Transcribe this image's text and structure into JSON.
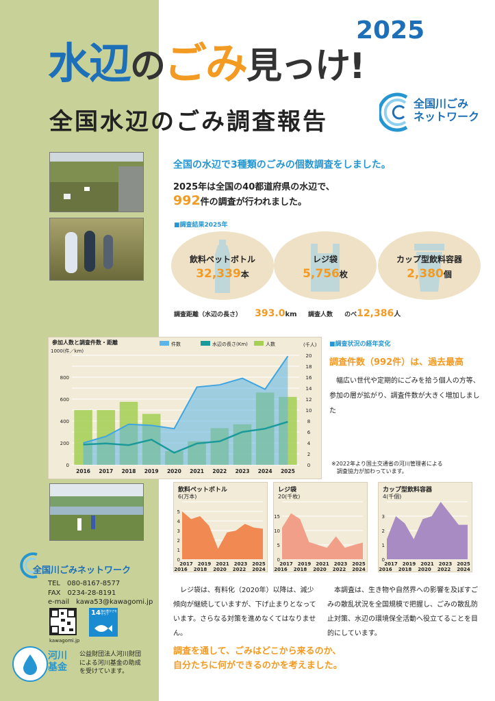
{
  "title": {
    "part1": "水辺",
    "part2": "の",
    "part3": "ごみ",
    "part4": "見っけ!",
    "year": "2025",
    "subtitle": "全国水辺のごみ調査報告"
  },
  "header_logo": {
    "line1": "全国川ごみ",
    "line2": "ネットワーク"
  },
  "lead": {
    "line1": "全国の水辺で3種類のごみの個数調査をしました。",
    "line2": "2025年は全国の40都道府県の水辺で、",
    "count": "992",
    "line3_suffix": "件の調査が行われました。"
  },
  "results": {
    "heading": "■調査結果2025年",
    "items": [
      {
        "name": "飲料ペットボトル",
        "value": "32,339",
        "unit": "本",
        "icon": "bottle-icon"
      },
      {
        "name": "レジ袋",
        "value": "5,756",
        "unit": "枚",
        "icon": "bag-icon"
      },
      {
        "name": "カップ型飲料容器",
        "value": "2,380",
        "unit": "個",
        "icon": "cup-icon"
      }
    ],
    "distance_label": "調査距離（水辺の長さ）",
    "distance_value": "393.0",
    "distance_unit": "km",
    "people_label": "調査人数",
    "people_prefix": "のべ",
    "people_value": "12,386",
    "people_unit": "人"
  },
  "chart_data": [
    {
      "type": "bar",
      "title": "参加人数と調査件数・距離",
      "ylabel_left": "1000(件／km)",
      "ylabel_right": "(千人)",
      "categories": [
        "2016",
        "2017",
        "2018",
        "2019",
        "2020",
        "2021",
        "2022",
        "2023",
        "2024",
        "2025"
      ],
      "ylim_left": [
        0,
        1000
      ],
      "ylim_right": [
        0,
        20
      ],
      "left_ticks": [
        "0",
        "200",
        "400",
        "600",
        "800",
        "1000"
      ],
      "right_ticks": [
        "0",
        "2",
        "4",
        "6",
        "8",
        "10",
        "12",
        "14",
        "16",
        "18",
        "20"
      ],
      "legend": [
        "件数",
        "水辺の長さ(Km)",
        "人数"
      ],
      "series": [
        {
          "name": "人数",
          "kind": "bar",
          "axis": "right",
          "color": "#a5cf55",
          "values": [
            10.0,
            10.0,
            11.5,
            9.3,
            2.5,
            4.3,
            6.7,
            7.4,
            13.2,
            12.4
          ]
        },
        {
          "name": "件数",
          "kind": "area",
          "axis": "left",
          "color": "#5bb5e8",
          "values": [
            200,
            260,
            370,
            360,
            330,
            710,
            730,
            790,
            690,
            992
          ]
        },
        {
          "name": "水辺の長さ(Km)",
          "kind": "line",
          "axis": "left",
          "color": "#1a9a9a",
          "values": [
            185,
            195,
            180,
            230,
            110,
            195,
            215,
            300,
            330,
            393
          ]
        }
      ]
    },
    {
      "type": "area",
      "title": "飲料ペットボトル",
      "ylabel": "6(万本)",
      "ylim": [
        0,
        6
      ],
      "left_ticks": [
        "0",
        "1",
        "2",
        "3",
        "4",
        "5",
        "6"
      ],
      "x": [
        "2017",
        "2019",
        "2021",
        "2023",
        "2025",
        "2016",
        "2018",
        "2020",
        "2022",
        "2024"
      ],
      "points": [
        5.0,
        4.2,
        4.5,
        3.5,
        1.1,
        2.8,
        3.0,
        3.7,
        3.3,
        3.2
      ],
      "color": "#f08a52"
    },
    {
      "type": "area",
      "title": "レジ袋",
      "ylabel": "20(千枚)",
      "ylim": [
        0,
        20
      ],
      "left_ticks": [
        "0",
        "5",
        "10",
        "15",
        "20"
      ],
      "x": [
        "2017",
        "2019",
        "2021",
        "2023",
        "2025",
        "2016",
        "2018",
        "2020",
        "2022",
        "2024"
      ],
      "points": [
        11,
        16,
        14,
        6,
        5,
        4,
        8,
        4,
        5,
        5.8
      ],
      "color": "#f19f88"
    },
    {
      "type": "area",
      "title": "カップ型飲料容器",
      "ylabel": "4(千個)",
      "ylim": [
        0,
        4
      ],
      "left_ticks": [
        "0",
        "1",
        "2",
        "3",
        "4"
      ],
      "x": [
        "2017",
        "2019",
        "2021",
        "2023",
        "2025",
        "2016",
        "2018",
        "2020",
        "2022",
        "2024"
      ],
      "points": [
        1.4,
        3.0,
        2.5,
        1.4,
        2.8,
        3.0,
        4.0,
        3.2,
        2.4,
        2.4
      ],
      "color": "#a98bc4"
    }
  ],
  "trend": {
    "heading": "■調査状況の経年変化",
    "headline": "調査件数（992件）は、過去最高",
    "text": "　幅広い世代や定期的にごみを拾う個人の方等、参加の層が拡がり、調査件数が大きく増加しました",
    "note1": "※2022年より国土交通省の河川管理者による",
    "note2": "　調査協力が加わっています。"
  },
  "paragraph_left": "　レジ袋は、有料化（2020年）以降は、減少傾向が継続していますが、下げ止まりとなっています。さらなる対策を進めなくてはなりません。",
  "paragraph_right": "　本調査は、生き物や自然界への影響を及ぼすごみの散乱状況を全国規模で把握し、ごみの散乱防止対策、水辺の環境保全活動へ役立てることを目的にしています。",
  "closing": {
    "line1": "調査を通して、ごみはどこから来るのか、",
    "line2": "自分たちに何ができるのかを考えました。"
  },
  "org": {
    "name": "全国川ごみネットワーク",
    "tel": "TEL　080-8167-8577",
    "fax": "FAX　0234-28-8191",
    "email": "e-mail　kawa53@kawagomi.jp",
    "url": "kawagomi.jp",
    "sdg_num": "14",
    "sdg_text": "海の豊かさを守ろう"
  },
  "fund": {
    "name1": "河川",
    "name2": "基金",
    "text1": "公益財団法人河川財団",
    "text2": "による河川基金の助成",
    "text3": "を受けています。"
  },
  "colors": {
    "blue": "#1d6fb7",
    "lightblue": "#2596d1",
    "orange": "#f39a22",
    "leftcol": "#c8d197"
  }
}
